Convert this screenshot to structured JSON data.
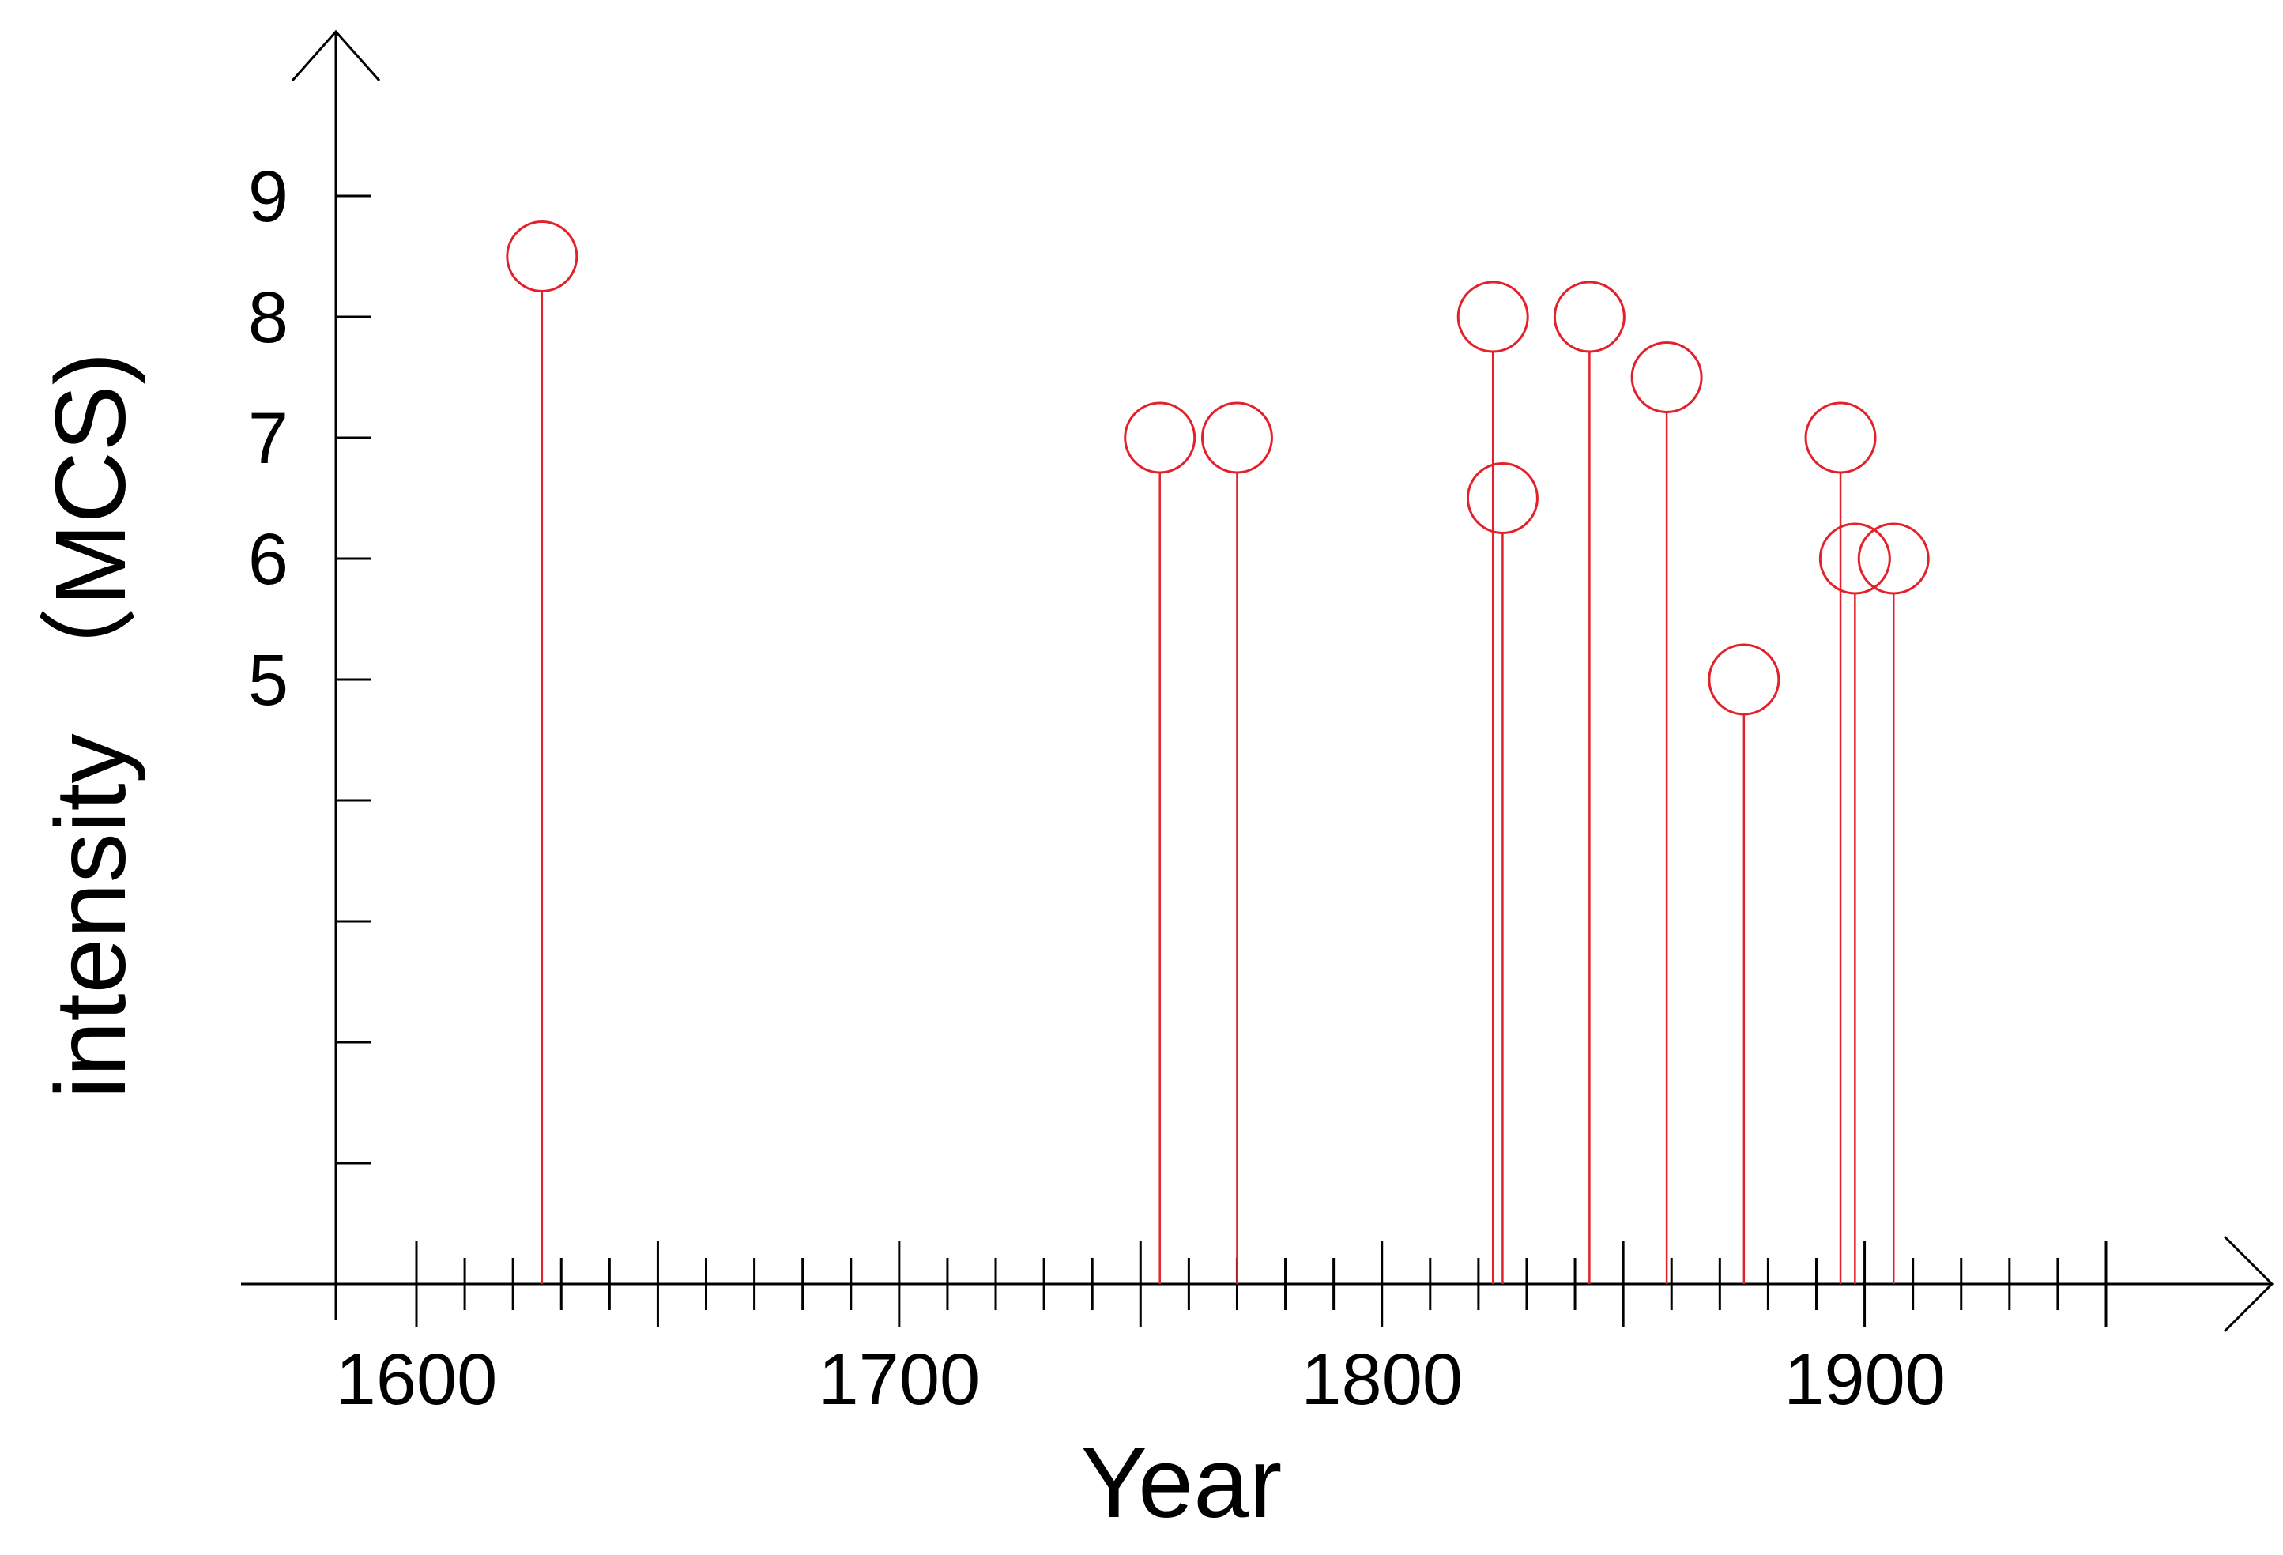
{
  "chart_data": {
    "type": "scatter",
    "style": "stem",
    "xlabel": "Year",
    "ylabel": "intensity （MCS)",
    "xlim": [
      1570,
      1975
    ],
    "ylim": [
      0,
      10
    ],
    "x_major_ticks": [
      1600,
      1650,
      1700,
      1750,
      1800,
      1850,
      1900,
      1950
    ],
    "x_minor_step": 10,
    "x_tick_labels": [
      1600,
      1700,
      1800,
      1900
    ],
    "y_ticks": [
      1,
      2,
      3,
      4,
      5,
      6,
      7,
      8,
      9
    ],
    "y_tick_labels": [
      5,
      6,
      7,
      8,
      9
    ],
    "grid": false,
    "series_color": "#e3212b",
    "points": [
      {
        "x": 1626,
        "y": 8.5
      },
      {
        "x": 1754,
        "y": 7
      },
      {
        "x": 1770,
        "y": 7
      },
      {
        "x": 1823,
        "y": 8
      },
      {
        "x": 1825,
        "y": 6.5
      },
      {
        "x": 1843,
        "y": 8
      },
      {
        "x": 1859,
        "y": 7.5
      },
      {
        "x": 1875,
        "y": 5
      },
      {
        "x": 1895,
        "y": 7
      },
      {
        "x": 1898,
        "y": 6
      },
      {
        "x": 1906,
        "y": 6
      }
    ]
  }
}
